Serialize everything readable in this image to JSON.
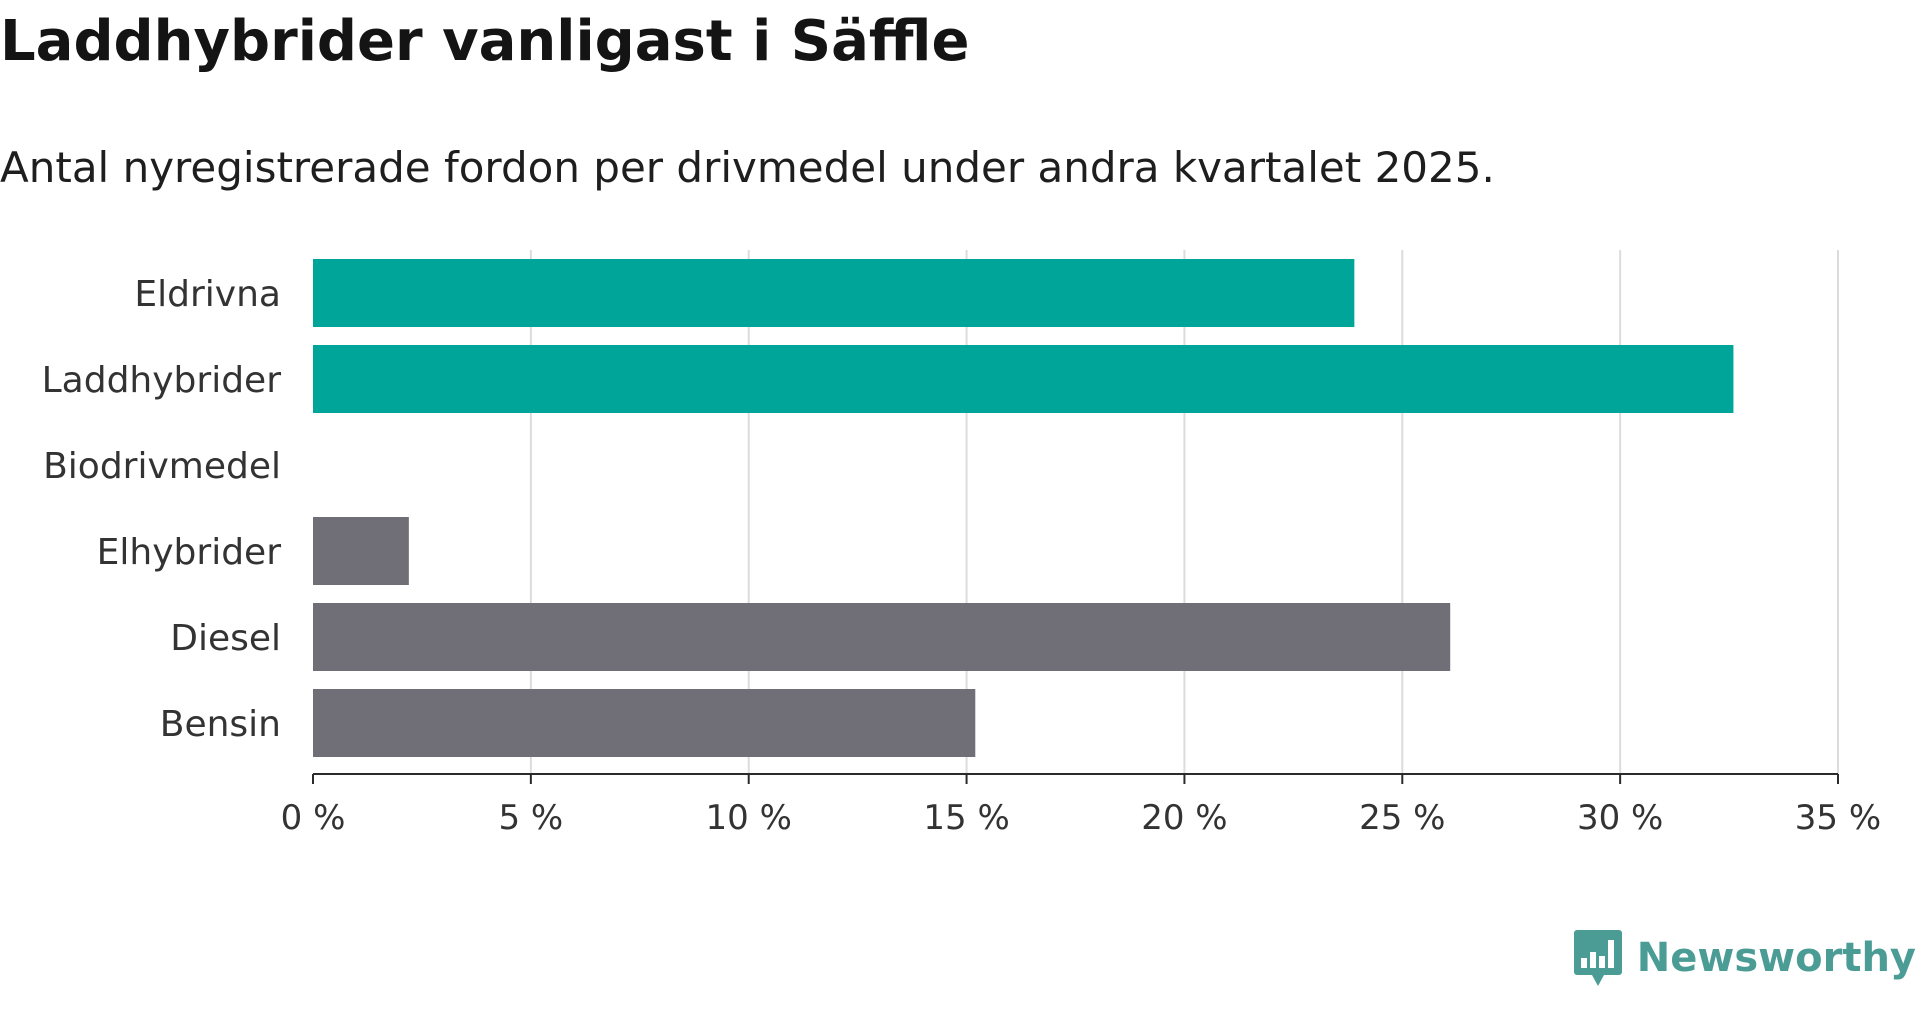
{
  "header": {
    "title": "Laddhybrider vanligast i Säffle",
    "subtitle": "Antal nyregistrerade fordon per drivmedel under andra kvartalet 2025."
  },
  "brand": {
    "name": "Newsworthy",
    "logo_icon": "newsworthy-bar-chart-icon",
    "color": "#4a9c95"
  },
  "colors": {
    "highlight": "#00a59a",
    "default": "#706f77",
    "grid": "#dcdcdc",
    "axis": "#2b2b2b"
  },
  "chart_data": {
    "type": "bar",
    "orientation": "horizontal",
    "categories": [
      "Eldrivna",
      "Laddhybrider",
      "Biodrivmedel",
      "Elhybrider",
      "Diesel",
      "Bensin"
    ],
    "values": [
      23.9,
      32.6,
      0,
      2.2,
      26.1,
      15.2
    ],
    "highlighted": [
      true,
      true,
      false,
      false,
      false,
      false
    ],
    "unit": "%",
    "xlim": [
      0,
      35
    ],
    "xticks": [
      0,
      5,
      10,
      15,
      20,
      25,
      30,
      35
    ],
    "xtick_labels": [
      "0 %",
      "5 %",
      "10 %",
      "15 %",
      "20 %",
      "25 %",
      "30 %",
      "35 %"
    ],
    "grid": true,
    "legend": "none"
  }
}
